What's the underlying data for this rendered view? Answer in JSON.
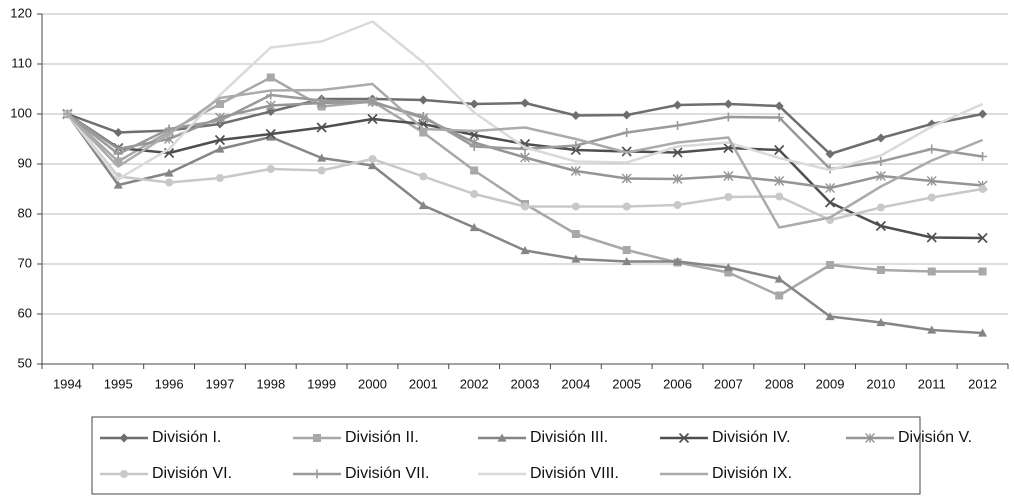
{
  "chart_data": {
    "type": "line",
    "categories": [
      "1994",
      "1995",
      "1996",
      "1997",
      "1998",
      "1999",
      "2000",
      "2001",
      "2002",
      "2003",
      "2004",
      "2005",
      "2006",
      "2007",
      "2008",
      "2009",
      "2010",
      "2011",
      "2012"
    ],
    "ylim": [
      50,
      120
    ],
    "yticks": [
      50,
      60,
      70,
      80,
      90,
      100,
      110,
      120
    ],
    "grid": true,
    "series": [
      {
        "name": "División I.",
        "color": "#6e6e6e",
        "marker": "diamond",
        "values": [
          100,
          96.3,
          96.7,
          98,
          100.5,
          103,
          103,
          102.8,
          102,
          102.2,
          99.7,
          99.8,
          101.8,
          102,
          101.6,
          92,
          95.2,
          98,
          100
        ]
      },
      {
        "name": "División II.",
        "color": "#a8a8a8",
        "marker": "square",
        "values": [
          100,
          90.5,
          96.5,
          102,
          107.3,
          101.5,
          102.5,
          96.3,
          88.7,
          82,
          76,
          72.8,
          70.3,
          68.3,
          63.7,
          69.8,
          68.8,
          68.5,
          68.5
        ]
      },
      {
        "name": "División III.",
        "color": "#858585",
        "marker": "triangle",
        "values": [
          100,
          85.8,
          88.2,
          93,
          95.4,
          91.2,
          89.7,
          81.7,
          77.3,
          72.7,
          71,
          70.5,
          70.5,
          69.3,
          67,
          59.5,
          58.3,
          56.8,
          56.2
        ]
      },
      {
        "name": "División IV.",
        "color": "#4f4f4f",
        "marker": "x",
        "values": [
          100,
          93.2,
          92.2,
          94.8,
          96,
          97.3,
          99,
          98,
          95.8,
          94,
          92.8,
          92.5,
          92.3,
          93.2,
          92.8,
          82.3,
          77.6,
          75.3,
          75.2
        ]
      },
      {
        "name": "División V.",
        "color": "#959595",
        "marker": "star",
        "values": [
          100,
          93,
          95,
          99.3,
          101.7,
          102.2,
          102.5,
          99.2,
          94.3,
          91.3,
          88.6,
          87.1,
          87,
          87.6,
          86.6,
          85.2,
          87.6,
          86.6,
          85.7
        ]
      },
      {
        "name": "División VI.",
        "color": "#c8c8c8",
        "marker": "circle",
        "values": [
          100,
          87.5,
          86.3,
          87.2,
          89,
          88.7,
          91,
          87.5,
          84,
          81.5,
          81.5,
          81.5,
          81.8,
          83.4,
          83.5,
          78.8,
          81.3,
          83.3,
          85
        ]
      },
      {
        "name": "División VII.",
        "color": "#9a9a9a",
        "marker": "plus",
        "values": [
          100,
          92,
          97,
          98.7,
          103.8,
          102.7,
          102.3,
          99.5,
          93.5,
          93,
          93.7,
          96.3,
          97.7,
          99.4,
          99.3,
          89,
          90.5,
          93,
          91.5
        ]
      },
      {
        "name": "División VIII.",
        "color": "#dadada",
        "marker": "none",
        "values": [
          100,
          87,
          93,
          103.8,
          113.3,
          114.5,
          118.5,
          110.3,
          100.3,
          93.3,
          90.5,
          90.3,
          93.5,
          94.3,
          91.2,
          88.8,
          91.7,
          97.5,
          102
        ]
      },
      {
        "name": "División IX.",
        "color": "#ababab",
        "marker": "none",
        "values": [
          100,
          89.5,
          96,
          103.2,
          104.7,
          104.8,
          106,
          97,
          96.6,
          97.3,
          95,
          92.3,
          94.3,
          95.3,
          77.3,
          79.3,
          85.5,
          90.7,
          94.8
        ]
      }
    ]
  }
}
